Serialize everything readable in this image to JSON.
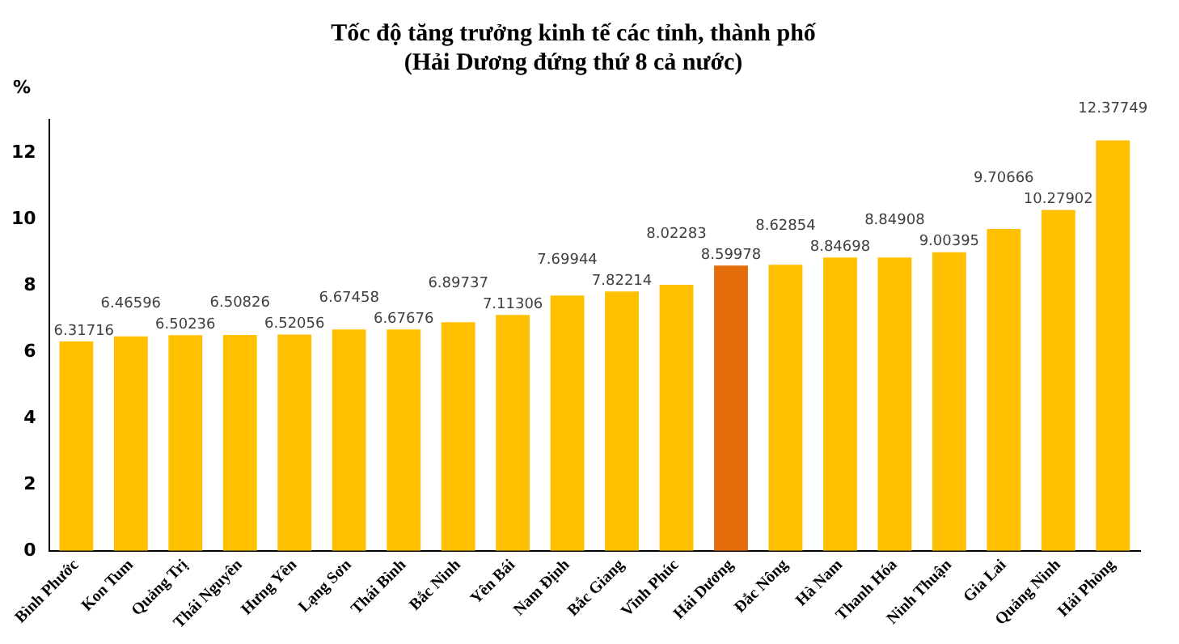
{
  "chart_data": {
    "type": "bar",
    "title": [
      "Tốc độ tăng trưởng kinh tế các tỉnh, thành phố",
      "(Hải Dương đứng thứ 8 cả nước)"
    ],
    "ylabel": "%",
    "categories": [
      "Bình Phước",
      "Kon Tum",
      "Quảng Trị",
      "Thái Nguyên",
      "Hưng Yên",
      "Lạng Sơn",
      "Thái Bình",
      "Bắc Ninh",
      "Yên Bái",
      "Nam Định",
      "Bắc Giang",
      "Vĩnh Phúc",
      "Hải Dương",
      "Đắc Nông",
      "Hà Nam",
      "Thanh Hóa",
      "Ninh Thuận",
      "Gia Lai",
      "Quảng Ninh",
      "Hải Phòng"
    ],
    "values": [
      6.31716,
      6.46596,
      6.50236,
      6.50826,
      6.52056,
      6.67458,
      6.67676,
      6.89737,
      7.11306,
      7.69944,
      7.82214,
      8.02283,
      8.59978,
      8.62854,
      8.84698,
      8.84908,
      9.00395,
      9.70666,
      10.27902,
      12.37749
    ],
    "colors": [
      "#ffc000",
      "#ffc000",
      "#ffc000",
      "#ffc000",
      "#ffc000",
      "#ffc000",
      "#ffc000",
      "#ffc000",
      "#ffc000",
      "#ffc000",
      "#ffc000",
      "#ffc000",
      "#e46c0a",
      "#ffc000",
      "#ffc000",
      "#ffc000",
      "#ffc000",
      "#ffc000",
      "#ffc000",
      "#ffc000"
    ],
    "ylim": [
      0,
      13
    ],
    "yticks": [
      0,
      2,
      4,
      6,
      8,
      10,
      12
    ],
    "grid": false,
    "data_labels": true
  }
}
